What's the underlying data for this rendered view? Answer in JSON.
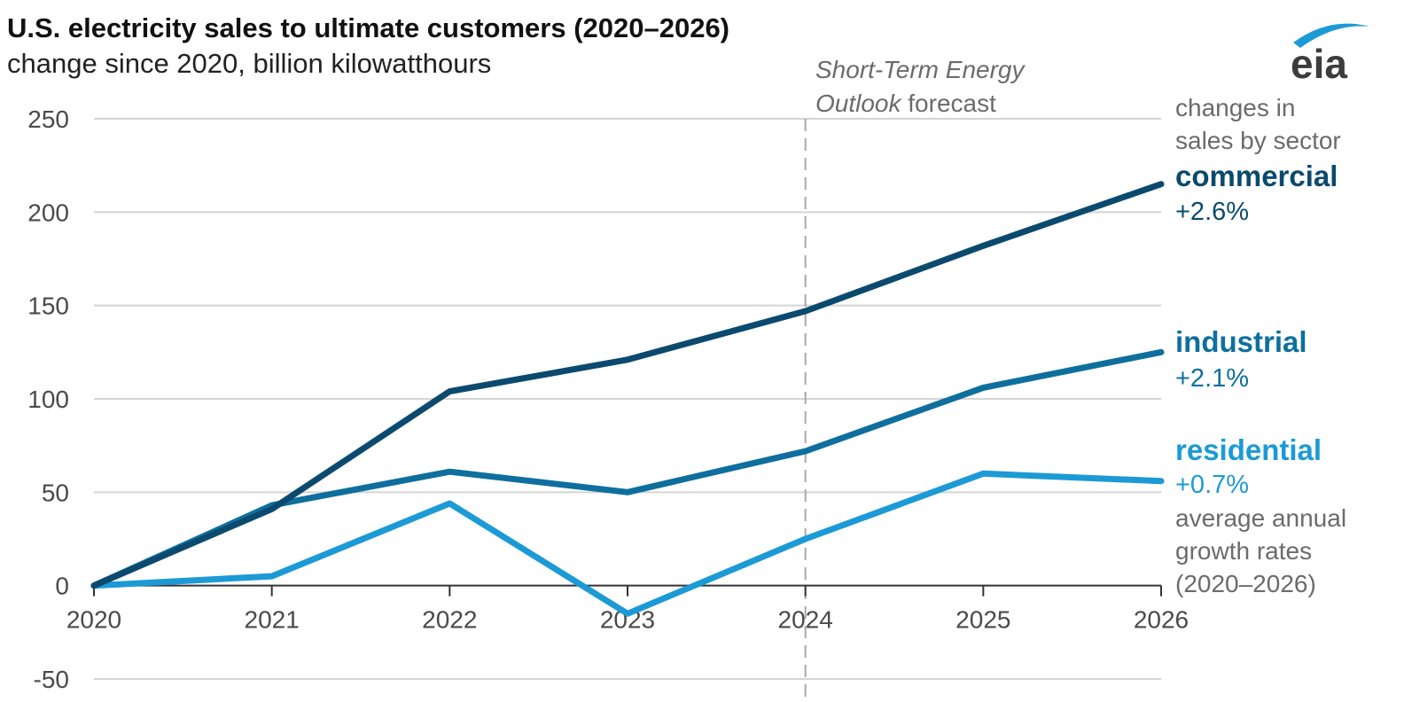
{
  "chart_data": {
    "type": "line",
    "title": "U.S. electricity sales to ultimate customers (2020–2026)",
    "subtitle": "change since 2020, billion kilowatthours",
    "x": [
      "2020",
      "2021",
      "2022",
      "2023",
      "2024",
      "2025",
      "2026"
    ],
    "ylim": [
      -50,
      250
    ],
    "yticks": [
      250,
      200,
      150,
      100,
      50,
      0,
      -50
    ],
    "grid": true,
    "forecast_start": "2024",
    "forecast_label_line1": "Short-Term Energy",
    "forecast_label_line2_italic": "Outlook",
    "forecast_label_line2_rest": " forecast",
    "legend_header_line1": "changes in",
    "legend_header_line2": "sales by sector",
    "legend_footer_line1": "average annual",
    "legend_footer_line2": "growth rates",
    "legend_footer_line3": "(2020–2026)",
    "series": [
      {
        "name": "commercial",
        "rate": "+2.6%",
        "color": "#0b4a6e",
        "values": [
          0,
          41,
          104,
          121,
          147,
          182,
          215
        ]
      },
      {
        "name": "industrial",
        "rate": "+2.1%",
        "color": "#0e6f9e",
        "values": [
          0,
          43,
          61,
          50,
          72,
          106,
          125
        ]
      },
      {
        "name": "residential",
        "rate": "+0.7%",
        "color": "#1c9ad6",
        "values": [
          0,
          5,
          44,
          -15,
          25,
          60,
          56
        ]
      }
    ]
  },
  "logo": {
    "text": "eia",
    "swoosh_color": "#1c9ad6"
  }
}
